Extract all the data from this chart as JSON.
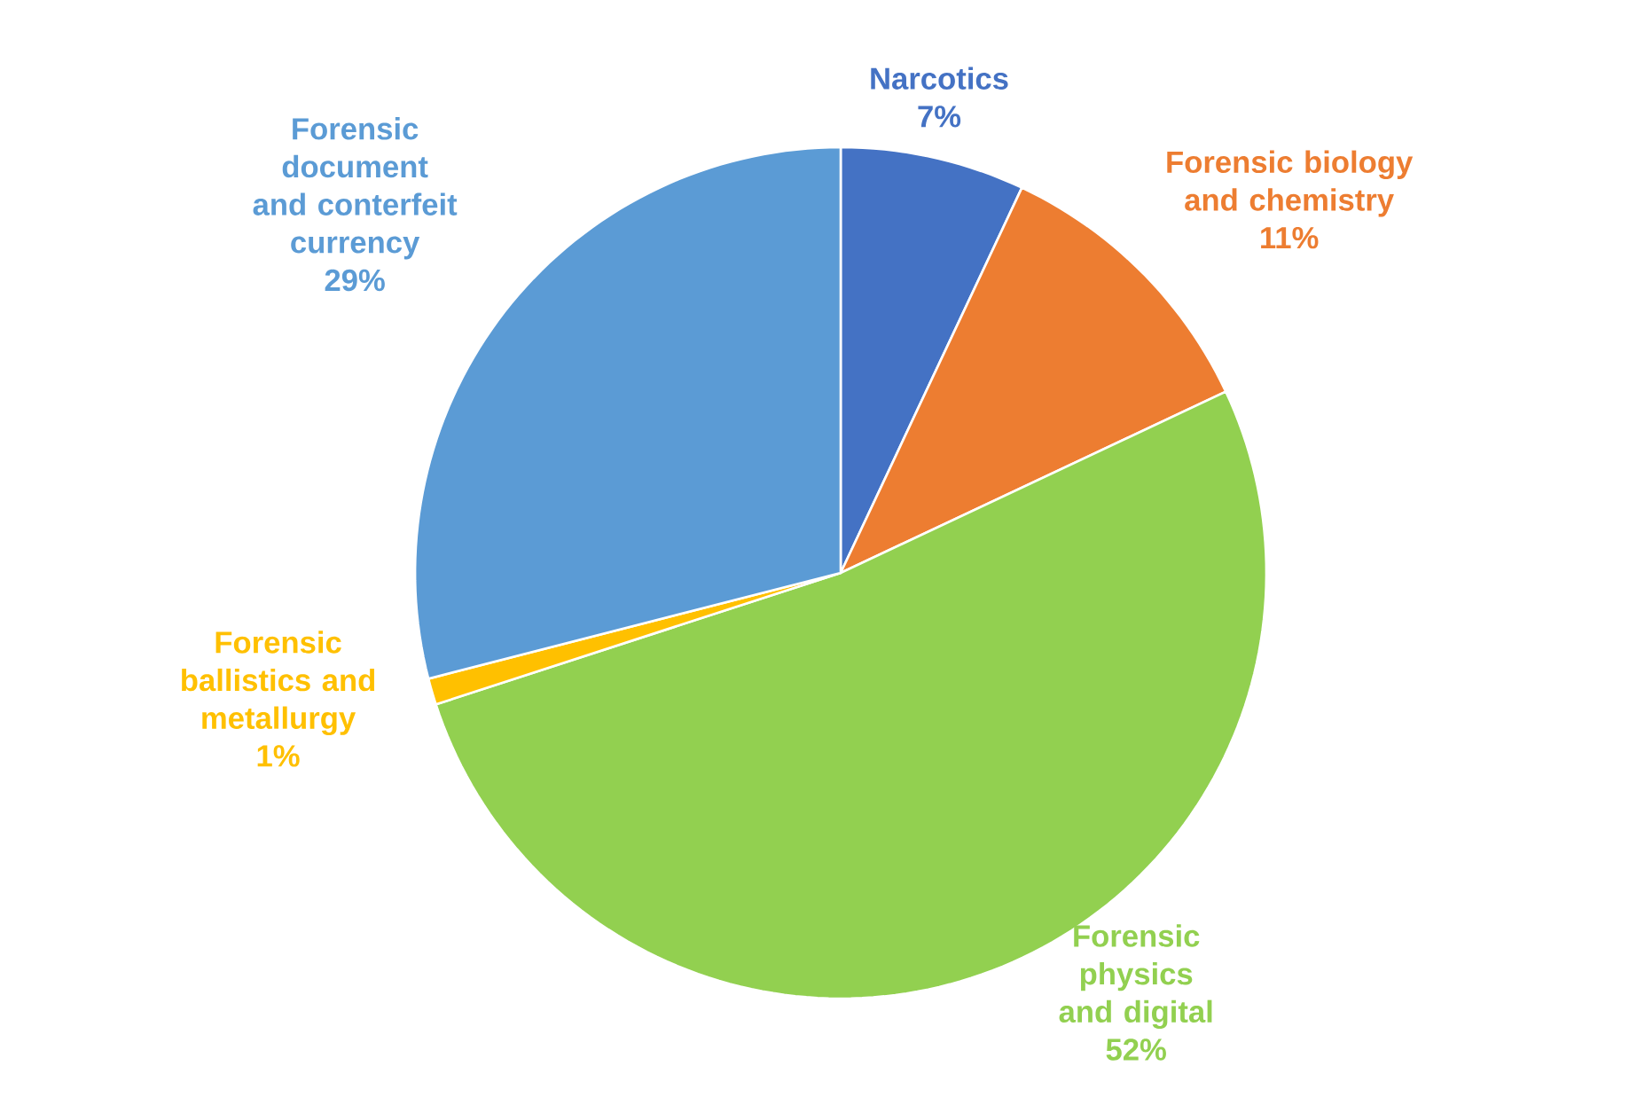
{
  "chart_data": {
    "type": "pie",
    "categories": [
      "Narcotics",
      "Forensic biology and chemistry",
      "Forensic physics and digital",
      "Forensic ballistics and metallurgy",
      "Forensic document and conterfeit currency"
    ],
    "values": [
      7,
      11,
      52,
      1,
      29
    ],
    "value_labels": [
      "7%",
      "11%",
      "52%",
      "1%",
      "29%"
    ],
    "colors": [
      "#4472c4",
      "#ed7d31",
      "#92d050",
      "#ffc000",
      "#5b9bd5"
    ]
  }
}
